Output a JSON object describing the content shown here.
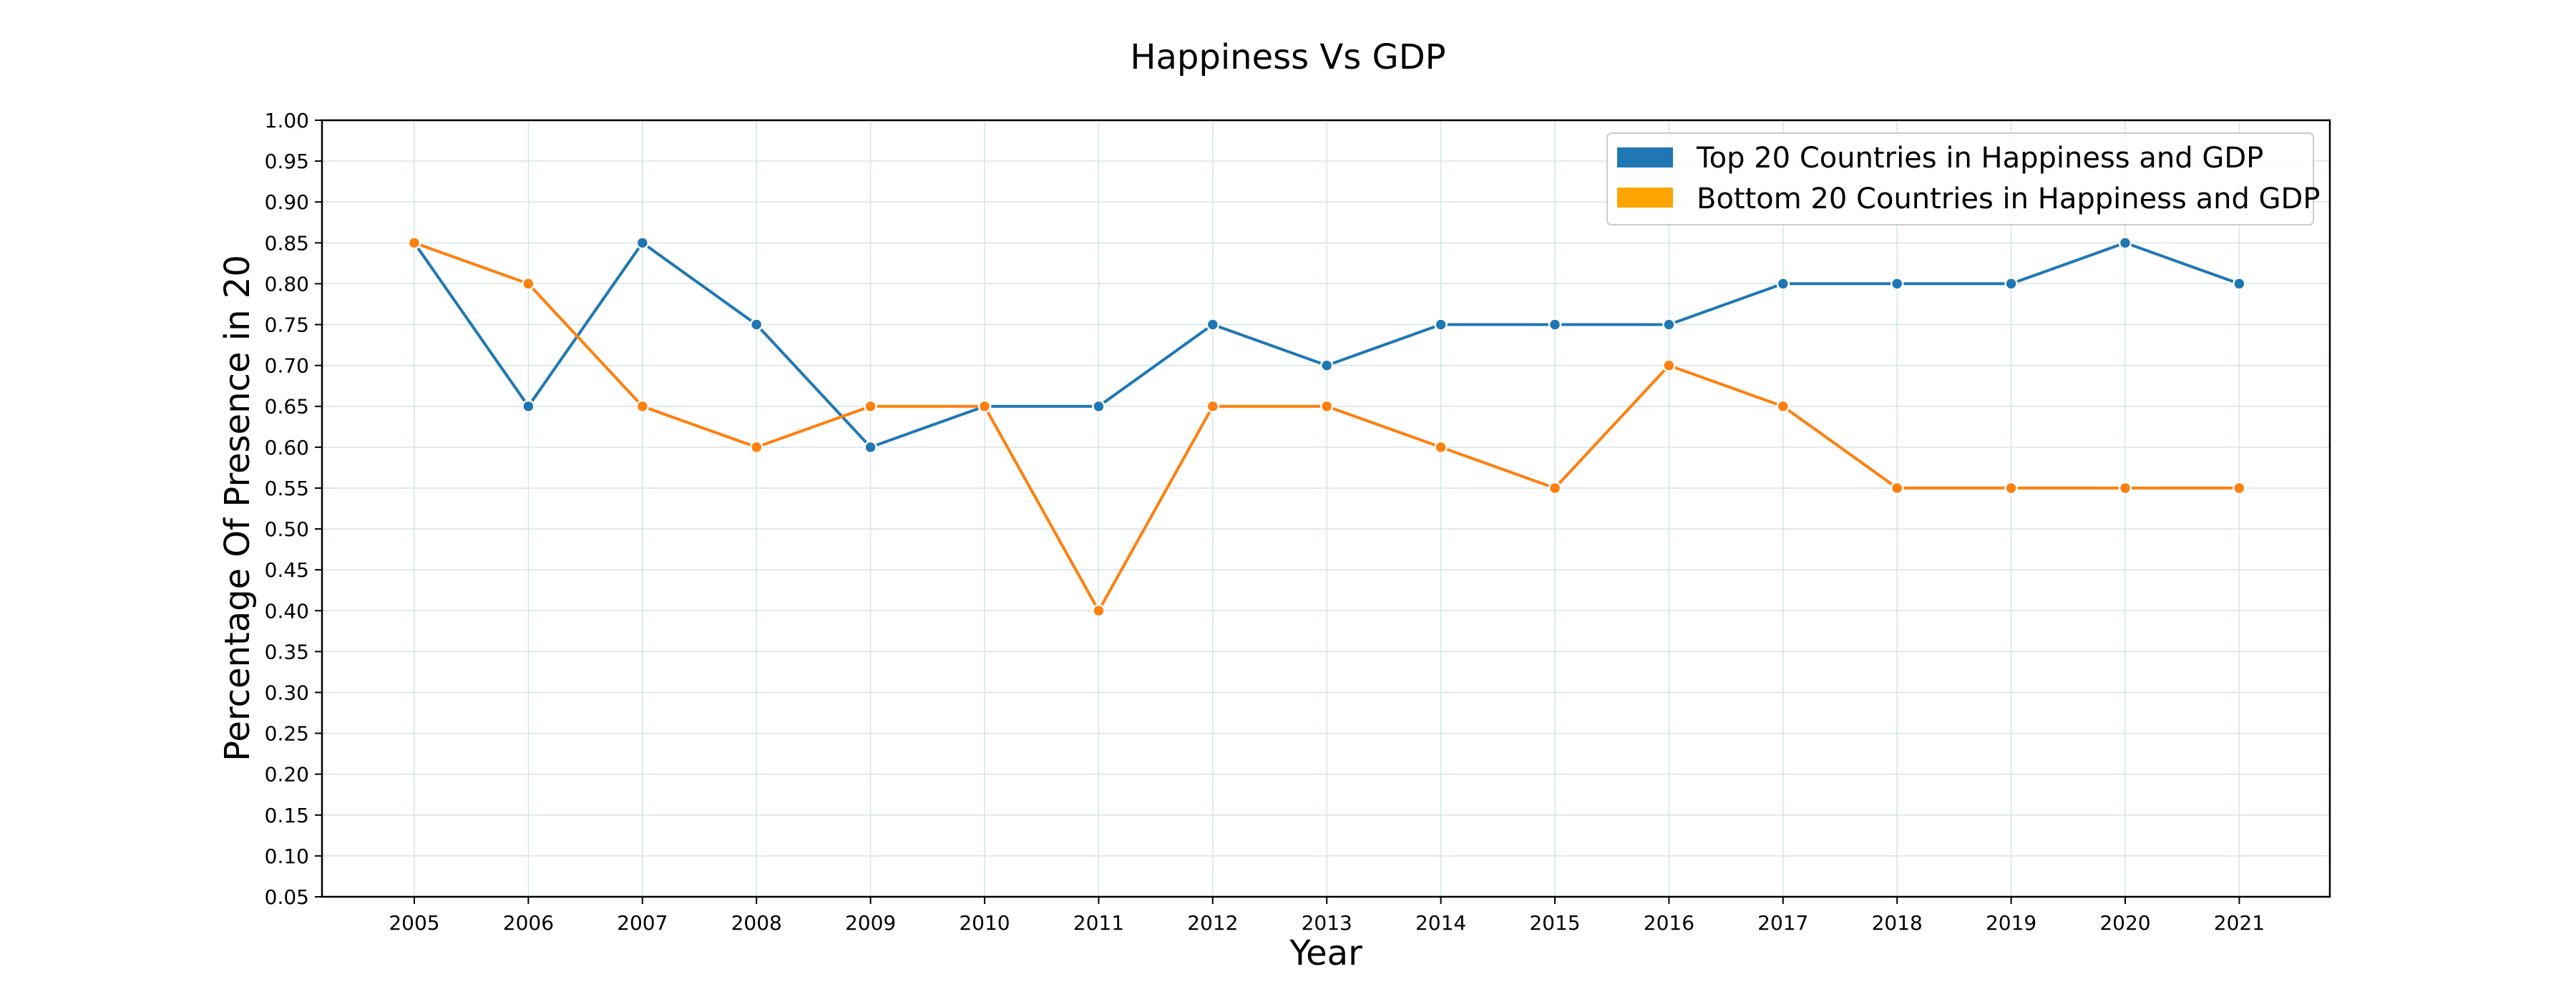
{
  "chart_data": {
    "type": "line",
    "title": "Happiness Vs GDP",
    "xlabel": "Year",
    "ylabel": "Percentage Of Presence in 20",
    "categories": [
      "2005",
      "2006",
      "2007",
      "2008",
      "2009",
      "2010",
      "2011",
      "2012",
      "2013",
      "2014",
      "2015",
      "2016",
      "2017",
      "2018",
      "2019",
      "2020",
      "2021"
    ],
    "yticks": [
      "0.05",
      "0.10",
      "0.15",
      "0.20",
      "0.25",
      "0.30",
      "0.35",
      "0.40",
      "0.45",
      "0.50",
      "0.55",
      "0.60",
      "0.65",
      "0.70",
      "0.75",
      "0.80",
      "0.85",
      "0.90",
      "0.95",
      "1.00"
    ],
    "ylim": [
      0.05,
      1.0
    ],
    "grid": true,
    "legend_position": "top-right",
    "series": [
      {
        "name": "Top 20 Countries in Happiness and GDP",
        "color": "#1f77b4",
        "values": [
          0.85,
          0.65,
          0.85,
          0.75,
          0.6,
          0.65,
          0.65,
          0.75,
          0.7,
          0.75,
          0.75,
          0.75,
          0.8,
          0.8,
          0.8,
          0.85,
          0.8
        ]
      },
      {
        "name": "Bottom 20 Countries in Happiness and GDP",
        "color": "#ff7f0e",
        "values": [
          0.85,
          0.8,
          0.65,
          0.6,
          0.65,
          0.65,
          0.4,
          0.65,
          0.65,
          0.6,
          0.55,
          0.7,
          0.65,
          0.55,
          0.55,
          0.55,
          0.55
        ]
      }
    ],
    "legend_swatch_colors": [
      "#1f77b4",
      "#ffa500"
    ]
  }
}
